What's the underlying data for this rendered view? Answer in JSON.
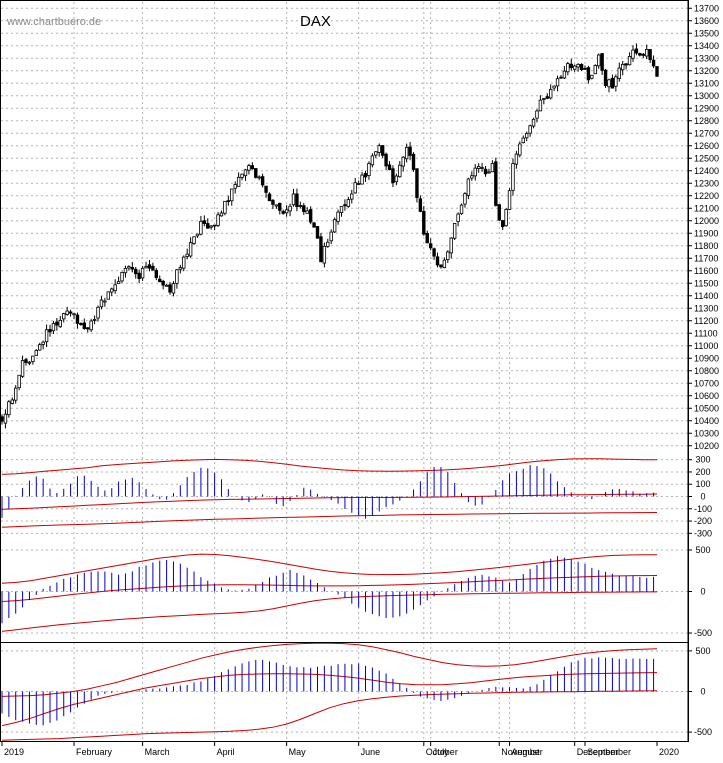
{
  "watermark": "www.chartbuero.de",
  "colors": {
    "price": "#000000",
    "histogram": "#0000cc",
    "bands": "#cc0000",
    "grid": "#b4b4b4",
    "axis": "#000000"
  },
  "chart_data": [
    {
      "type": "candlestick",
      "title": "DAX",
      "ylim": [
        10150,
        13750
      ],
      "yticks": [
        10200,
        10300,
        10400,
        10500,
        10600,
        10700,
        10800,
        10900,
        11000,
        11100,
        11200,
        11300,
        11400,
        11500,
        11600,
        11700,
        11800,
        11900,
        12000,
        12100,
        12200,
        12300,
        12400,
        12500,
        12600,
        12700,
        12800,
        12900,
        13000,
        13100,
        13200,
        13300,
        13400,
        13500,
        13600,
        13700
      ],
      "x_labels": [
        "2019",
        "February",
        "March",
        "April",
        "May",
        "June",
        "July",
        "August",
        "September",
        "October",
        "November",
        "December",
        "2020"
      ],
      "grid": true,
      "close_points": [
        [
          0,
          10420
        ],
        [
          3,
          10600
        ],
        [
          6,
          10850
        ],
        [
          10,
          10930
        ],
        [
          13,
          11100
        ],
        [
          16,
          11180
        ],
        [
          19,
          11290
        ],
        [
          22,
          11210
        ],
        [
          25,
          11120
        ],
        [
          28,
          11300
        ],
        [
          31,
          11420
        ],
        [
          34,
          11530
        ],
        [
          37,
          11620
        ],
        [
          40,
          11560
        ],
        [
          43,
          11650
        ],
        [
          46,
          11520
        ],
        [
          49,
          11460
        ],
        [
          52,
          11630
        ],
        [
          55,
          11800
        ],
        [
          58,
          11970
        ],
        [
          61,
          11930
        ],
        [
          64,
          12080
        ],
        [
          67,
          12240
        ],
        [
          70,
          12380
        ],
        [
          73,
          12420
        ],
        [
          76,
          12280
        ],
        [
          79,
          12150
        ],
        [
          82,
          12050
        ],
        [
          85,
          12180
        ],
        [
          88,
          12080
        ],
        [
          91,
          11980
        ],
        [
          93,
          11700
        ],
        [
          95,
          11860
        ],
        [
          97,
          11990
        ],
        [
          100,
          12150
        ],
        [
          103,
          12290
        ],
        [
          106,
          12380
        ],
        [
          108,
          12520
        ],
        [
          110,
          12600
        ],
        [
          112,
          12440
        ],
        [
          114,
          12330
        ],
        [
          116,
          12420
        ],
        [
          118,
          12570
        ],
        [
          120,
          12420
        ],
        [
          121,
          12200
        ],
        [
          123,
          11900
        ],
        [
          125,
          11750
        ],
        [
          127,
          11620
        ],
        [
          129,
          11700
        ],
        [
          131,
          11870
        ],
        [
          133,
          12050
        ],
        [
          135,
          12250
        ],
        [
          137,
          12380
        ],
        [
          139,
          12460
        ],
        [
          141,
          12380
        ],
        [
          143,
          12450
        ],
        [
          144,
          12100
        ],
        [
          146,
          11950
        ],
        [
          147,
          12070
        ],
        [
          149,
          12450
        ],
        [
          151,
          12620
        ],
        [
          154,
          12780
        ],
        [
          157,
          12930
        ],
        [
          160,
          13050
        ],
        [
          162,
          13120
        ],
        [
          165,
          13230
        ],
        [
          167,
          13240
        ],
        [
          170,
          13190
        ],
        [
          172,
          13130
        ],
        [
          174,
          13320
        ],
        [
          176,
          13100
        ],
        [
          178,
          13090
        ],
        [
          180,
          13210
        ],
        [
          182,
          13260
        ],
        [
          184,
          13380
        ],
        [
          186,
          13290
        ],
        [
          188,
          13360
        ],
        [
          190,
          13260
        ],
        [
          191,
          13150
        ]
      ]
    },
    {
      "type": "bar",
      "yticks": [
        -300,
        -200,
        -100,
        0,
        100,
        200,
        300
      ],
      "ylim": [
        -330,
        330
      ],
      "upper_band": [
        180,
        185,
        195,
        205,
        215,
        225,
        235,
        250,
        260,
        268,
        275,
        282,
        290,
        296,
        300,
        302,
        300,
        296,
        288,
        276,
        262,
        248,
        236,
        225,
        216,
        210,
        207,
        206,
        207,
        209,
        212,
        216,
        222,
        230,
        240,
        252,
        266,
        280,
        292,
        300,
        306,
        308,
        307,
        305,
        302,
        300,
        300
      ],
      "lower_band": [
        -250,
        -245,
        -240,
        -236,
        -232,
        -229,
        -226,
        -222,
        -218,
        -213,
        -208,
        -203,
        -198,
        -194,
        -190,
        -186,
        -183,
        -180,
        -176,
        -173,
        -170,
        -168,
        -165,
        -162,
        -159,
        -157,
        -155,
        -153,
        -150,
        -148,
        -147,
        -146,
        -145,
        -143,
        -142,
        -140,
        -139,
        -138,
        -137,
        -136,
        -135,
        -135,
        -134,
        -133,
        -132,
        -131,
        -130
      ],
      "mid_line": [
        -105,
        -100,
        -95,
        -90,
        -84,
        -78,
        -72,
        -66,
        -60,
        -54,
        -48,
        -43,
        -38,
        -33,
        -29,
        -26,
        -24,
        -22,
        -20,
        -18,
        -16,
        -14,
        -12,
        -10,
        -9,
        -8,
        -8,
        -8,
        -7,
        -6,
        -5,
        -4,
        -2,
        0,
        2,
        4,
        6,
        8,
        10,
        12,
        14,
        15,
        16,
        17,
        18,
        19,
        20
      ],
      "histogram": [
        -180,
        -80,
        40,
        110,
        170,
        150,
        60,
        20,
        90,
        150,
        180,
        130,
        60,
        40,
        110,
        130,
        150,
        100,
        40,
        -10,
        -40,
        30,
        110,
        190,
        230,
        240,
        200,
        120,
        40,
        -30,
        -60,
        -20,
        20,
        -30,
        -100,
        -60,
        20,
        70,
        40,
        10,
        -20,
        -60,
        -100,
        -140,
        -180,
        -160,
        -120,
        -80,
        -60,
        -30,
        30,
        120,
        200,
        260,
        230,
        150,
        40,
        -40,
        -90,
        -50,
        30,
        130,
        190,
        220,
        240,
        260,
        250,
        190,
        120,
        60,
        20,
        -10,
        -20,
        10,
        40,
        60,
        50,
        40,
        30,
        20,
        30
      ]
    },
    {
      "type": "bar",
      "yticks": [
        -500,
        0,
        500
      ],
      "ylim": [
        -560,
        560
      ],
      "upper_band": [
        100,
        110,
        130,
        160,
        190,
        220,
        250,
        280,
        310,
        340,
        370,
        400,
        420,
        440,
        450,
        445,
        430,
        410,
        385,
        360,
        330,
        300,
        270,
        245,
        225,
        212,
        205,
        203,
        205,
        210,
        218,
        228,
        240,
        255,
        272,
        290,
        310,
        330,
        350,
        370,
        390,
        410,
        425,
        435,
        440,
        442,
        442
      ],
      "lower_band": [
        -480,
        -460,
        -440,
        -420,
        -400,
        -385,
        -370,
        -355,
        -340,
        -328,
        -316,
        -305,
        -295,
        -285,
        -276,
        -268,
        -260,
        -250,
        -235,
        -210,
        -175,
        -140,
        -110,
        -90,
        -75,
        -65,
        -58,
        -52,
        -47,
        -42,
        -38,
        -34,
        -31,
        -28,
        -25,
        -22,
        -20,
        -18,
        -16,
        -14,
        -12,
        -10,
        -8,
        -7,
        -6,
        -5,
        -5
      ],
      "mid_line": [
        -120,
        -110,
        -95,
        -75,
        -55,
        -35,
        -18,
        0,
        15,
        28,
        40,
        52,
        62,
        70,
        76,
        80,
        82,
        82,
        80,
        77,
        73,
        70,
        68,
        67,
        68,
        70,
        73,
        77,
        82,
        88,
        95,
        102,
        110,
        118,
        126,
        134,
        142,
        150,
        158,
        165,
        172,
        178,
        183,
        187,
        190,
        192,
        193
      ],
      "histogram": [
        -380,
        -300,
        -200,
        -80,
        20,
        80,
        140,
        180,
        220,
        240,
        250,
        230,
        200,
        240,
        300,
        340,
        370,
        380,
        340,
        260,
        180,
        120,
        60,
        20,
        10,
        40,
        100,
        170,
        210,
        260,
        220,
        160,
        80,
        20,
        -40,
        -120,
        -200,
        -260,
        -300,
        -320,
        -300,
        -250,
        -180,
        -100,
        -20,
        50,
        110,
        170,
        200,
        190,
        150,
        100,
        160,
        250,
        330,
        390,
        420,
        400,
        360,
        310,
        260,
        230,
        200,
        190,
        180,
        170,
        180
      ]
    },
    {
      "type": "bar",
      "yticks": [
        -500,
        0,
        500
      ],
      "ylim": [
        -560,
        560
      ],
      "upper_band": [
        -60,
        -55,
        -50,
        -40,
        -20,
        0,
        30,
        70,
        110,
        160,
        210,
        260,
        310,
        360,
        410,
        450,
        490,
        520,
        545,
        565,
        580,
        590,
        595,
        595,
        590,
        575,
        550,
        515,
        475,
        430,
        390,
        355,
        330,
        315,
        310,
        315,
        330,
        355,
        385,
        415,
        445,
        470,
        490,
        505,
        515,
        520,
        525
      ],
      "lower_band": [
        -600,
        -595,
        -590,
        -585,
        -580,
        -570,
        -560,
        -550,
        -540,
        -530,
        -520,
        -515,
        -510,
        -505,
        -500,
        -495,
        -490,
        -480,
        -465,
        -440,
        -400,
        -340,
        -270,
        -200,
        -150,
        -115,
        -90,
        -70,
        -55,
        -45,
        -38,
        -32,
        -27,
        -22,
        -18,
        -14,
        -10,
        -8,
        -6,
        -4,
        -2,
        0,
        2,
        4,
        6,
        8,
        10
      ],
      "mid_line": [
        -420,
        -380,
        -330,
        -270,
        -210,
        -160,
        -120,
        -80,
        -40,
        0,
        40,
        70,
        100,
        130,
        160,
        180,
        200,
        210,
        215,
        218,
        218,
        215,
        210,
        200,
        185,
        165,
        140,
        115,
        95,
        85,
        82,
        85,
        95,
        110,
        130,
        150,
        170,
        185,
        195,
        205,
        212,
        218,
        222,
        225,
        228,
        230,
        232
      ],
      "histogram": [
        -270,
        -330,
        -370,
        -400,
        -420,
        -400,
        -350,
        -280,
        -200,
        -130,
        -70,
        -30,
        -10,
        0,
        10,
        20,
        30,
        40,
        50,
        70,
        90,
        120,
        160,
        210,
        270,
        320,
        360,
        390,
        390,
        370,
        330,
        300,
        290,
        300,
        310,
        320,
        330,
        340,
        340,
        320,
        280,
        220,
        140,
        60,
        -20,
        -80,
        -110,
        -120,
        -100,
        -60,
        -20,
        20,
        50,
        60,
        50,
        40,
        40,
        80,
        150,
        230,
        300,
        360,
        400,
        410,
        420,
        420,
        410,
        400,
        400,
        400,
        390
      ]
    }
  ]
}
